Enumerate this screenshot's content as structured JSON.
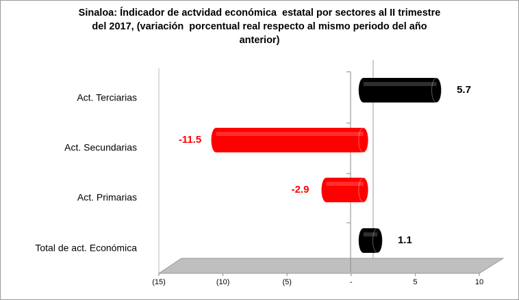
{
  "chart_data": {
    "type": "bar",
    "orientation": "horizontal",
    "three_d": true,
    "title": [
      "Sinaloa: Índicador de actvidad económica  estatal por sectores al II trimestre",
      "del 2017, (variación  porcentual real respecto al mismo periodo del año",
      "anterior)"
    ],
    "categories": [
      "Act. Terciarias",
      "Act. Secundarias",
      "Act. Primarias",
      "Total de act. Económica"
    ],
    "values": [
      5.7,
      -11.5,
      -2.9,
      1.1
    ],
    "positive_color": "#000000",
    "negative_color": "#ff0000",
    "xlim": [
      -15,
      10
    ],
    "xticks": [
      {
        "value": -15,
        "label": "(15)"
      },
      {
        "value": -10,
        "label": "(10)"
      },
      {
        "value": -5,
        "label": "(5)"
      },
      {
        "value": 0,
        "label": "-"
      },
      5,
      10
    ],
    "grid": false
  }
}
